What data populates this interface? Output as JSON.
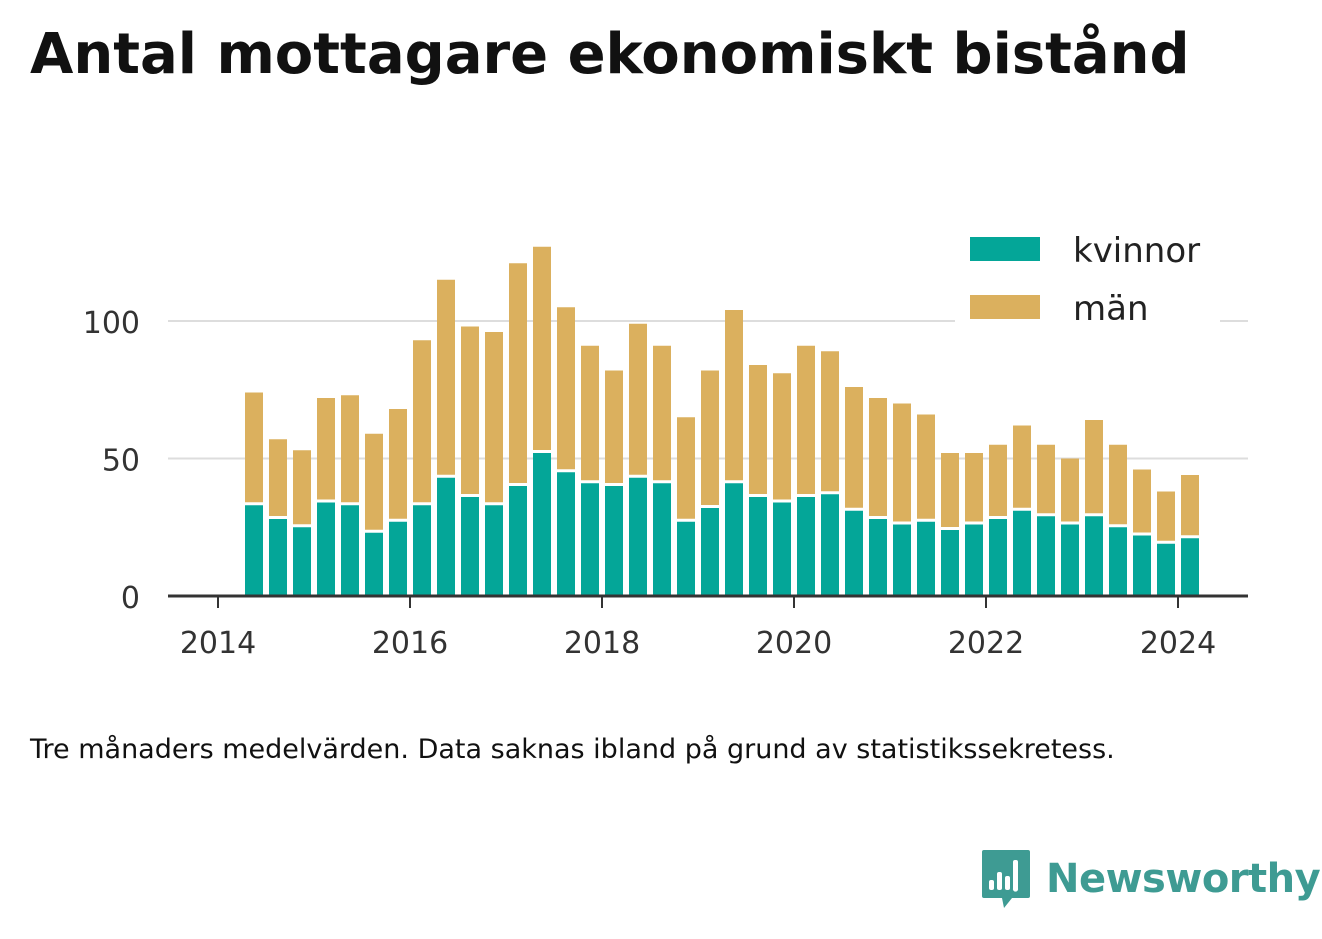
{
  "title": "Antal mottagare ekonomiskt bistånd",
  "note": "Tre månaders medelvärden. Data saknas ibland på grund av statistikssekretess.",
  "brand": {
    "name": "Newsworthy",
    "icon": "bar-chart-speech-bubble-icon",
    "color": "#3e9b93"
  },
  "colors": {
    "kvinnor": "#04a698",
    "man": "#dbb05e",
    "grid": "#dddddd",
    "axis": "#333333"
  },
  "chart_data": {
    "type": "bar",
    "stacked": true,
    "title": "Antal mottagare ekonomiskt bistånd",
    "xlabel": "",
    "ylabel": "",
    "ylim": [
      0,
      130
    ],
    "yticks": [
      0,
      50,
      100
    ],
    "xticks": [
      "2014",
      "2016",
      "2018",
      "2020",
      "2022",
      "2024"
    ],
    "grid": true,
    "legend_position": "top-right",
    "categories": [
      "2014-Q2",
      "2014-Q3",
      "2014-Q4",
      "2015-Q1",
      "2015-Q2",
      "2015-Q3",
      "2015-Q4",
      "2016-Q1",
      "2016-Q2",
      "2016-Q3",
      "2016-Q4",
      "2017-Q1",
      "2017-Q2",
      "2017-Q3",
      "2017-Q4",
      "2018-Q1",
      "2018-Q2",
      "2018-Q3",
      "2018-Q4",
      "2019-Q1",
      "2019-Q2",
      "2019-Q3",
      "2019-Q4",
      "2020-Q1",
      "2020-Q2",
      "2020-Q3",
      "2020-Q4",
      "2021-Q1",
      "2021-Q2",
      "2021-Q3",
      "2021-Q4",
      "2022-Q1",
      "2022-Q2",
      "2022-Q3",
      "2022-Q4",
      "2023-Q1",
      "2023-Q2",
      "2023-Q3",
      "2023-Q4",
      "2024-Q1"
    ],
    "series": [
      {
        "name": "kvinnor",
        "color": "#04a698",
        "values": [
          33,
          28,
          25,
          34,
          33,
          23,
          27,
          33,
          43,
          36,
          33,
          40,
          52,
          45,
          41,
          40,
          43,
          41,
          27,
          32,
          41,
          36,
          34,
          36,
          37,
          31,
          28,
          26,
          27,
          24,
          26,
          28,
          31,
          29,
          26,
          29,
          25,
          22,
          19,
          21
        ]
      },
      {
        "name": "män",
        "color": "#dbb05e",
        "values": [
          41,
          29,
          28,
          38,
          40,
          36,
          41,
          60,
          72,
          62,
          63,
          81,
          75,
          60,
          50,
          42,
          56,
          50,
          38,
          50,
          63,
          48,
          47,
          55,
          52,
          45,
          44,
          44,
          39,
          28,
          26,
          27,
          31,
          26,
          24,
          35,
          30,
          24,
          19,
          23
        ]
      }
    ]
  }
}
